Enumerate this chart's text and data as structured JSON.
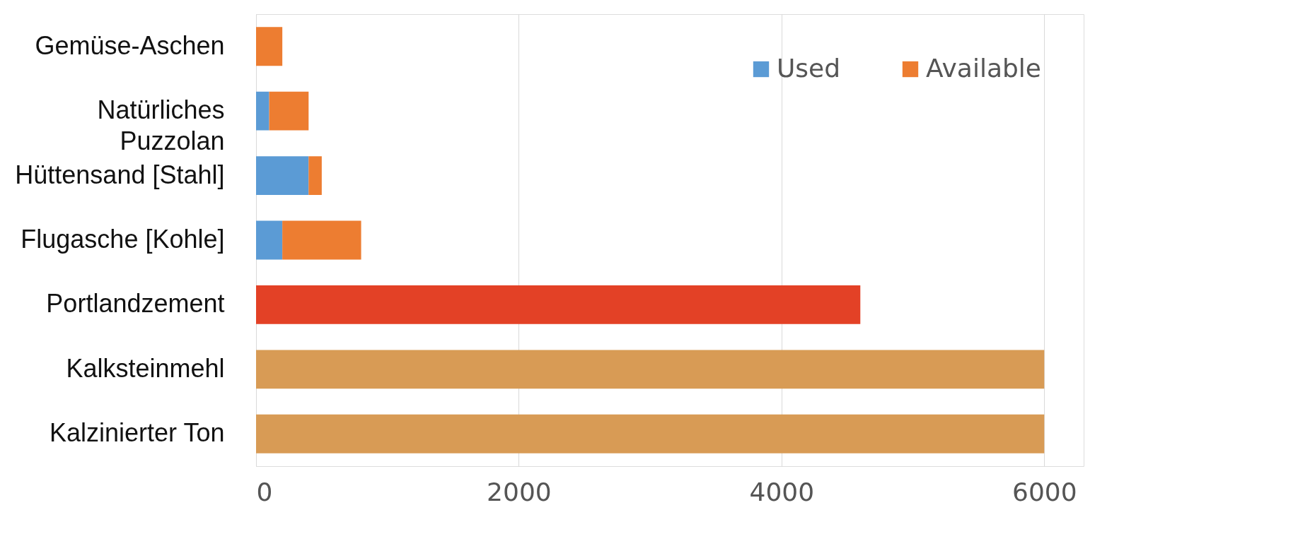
{
  "chart_data": {
    "type": "bar",
    "orientation": "horizontal",
    "stacked": true,
    "categories": [
      "Gemüse-Aschen",
      "Natürliches\nPuzzolan",
      "Hüttensand [Stahl]",
      "Flugasche [Kohle]",
      "Portlandzement",
      "Kalksteinmehl",
      "Kalzinierter Ton"
    ],
    "series": [
      {
        "name": "Used",
        "color": "#5b9bd5",
        "values": [
          null,
          100,
          400,
          200,
          null,
          null,
          null
        ]
      },
      {
        "name": "Available",
        "color": "#ed7d31",
        "colors": [
          "#ed7d31",
          "#ed7d31",
          "#ed7d31",
          "#ed7d31",
          "#e34126",
          "#d89b55",
          "#d89b55"
        ],
        "values": [
          200,
          300,
          100,
          600,
          4600,
          6000,
          6000
        ]
      }
    ],
    "xlim": [
      0,
      6300
    ],
    "xticks": [
      0,
      2000,
      4000,
      6000
    ],
    "grid": "x",
    "legend": "top right"
  }
}
